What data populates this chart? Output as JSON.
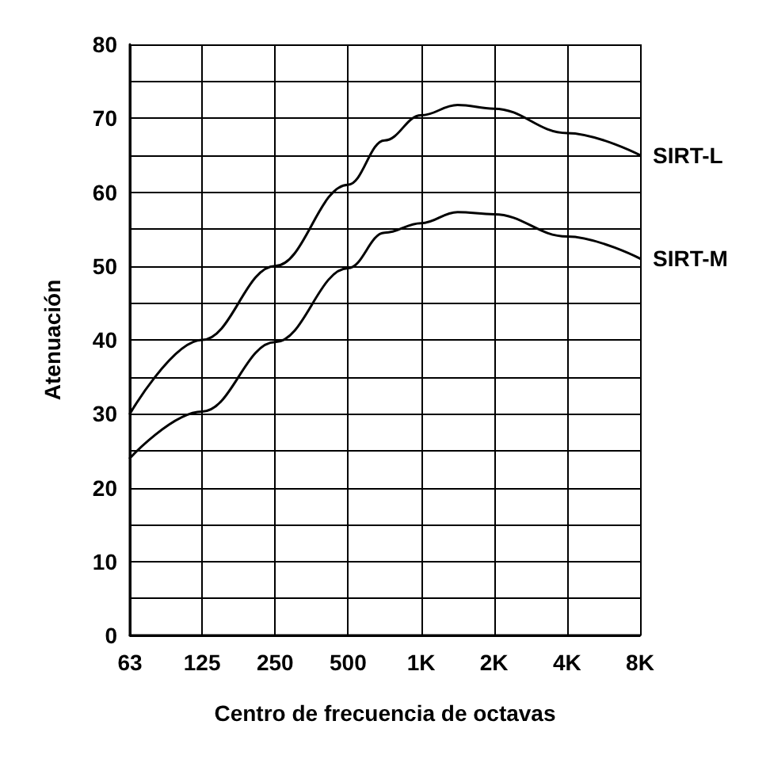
{
  "chart_data": {
    "type": "line",
    "xlabel": "Centro de frecuencia de octavas",
    "ylabel": "Atenuación",
    "log": "x",
    "xlim": [
      63,
      8000
    ],
    "xticks": [
      {
        "value": 63,
        "label": "63"
      },
      {
        "value": 125,
        "label": "125"
      },
      {
        "value": 250,
        "label": "250"
      },
      {
        "value": 500,
        "label": "500"
      },
      {
        "value": 1000,
        "label": "1K"
      },
      {
        "value": 2000,
        "label": "2K"
      },
      {
        "value": 4000,
        "label": "4K"
      },
      {
        "value": 8000,
        "label": "8K"
      }
    ],
    "ylim": [
      0,
      80
    ],
    "yticks": [
      0,
      {
        "value": 5,
        "label": null
      },
      10,
      {
        "value": 15,
        "label": null
      },
      20,
      {
        "value": 25,
        "label": null
      },
      30,
      {
        "value": 35,
        "label": null
      },
      40,
      {
        "value": 45,
        "label": null
      },
      50,
      {
        "value": 55,
        "label": null
      },
      60,
      {
        "value": 65,
        "label": null
      },
      70,
      {
        "value": 75,
        "label": null
      },
      80
    ],
    "grid": true,
    "legend": false,
    "marker": "none",
    "line_style": "solid",
    "series": [
      {
        "name": "SIRT-L",
        "color": "#000000",
        "x": [
          63,
          125,
          250,
          500,
          707,
          1000,
          1414,
          2000,
          4000,
          8000
        ],
        "values": [
          30,
          40,
          50,
          61,
          67,
          70.4,
          71.8,
          71.3,
          68,
          65
        ]
      },
      {
        "name": "SIRT-M",
        "color": "#000000",
        "x": [
          63,
          125,
          250,
          500,
          707,
          1000,
          1414,
          2000,
          4000,
          8000
        ],
        "values": [
          24,
          30.3,
          39.7,
          49.7,
          54.5,
          55.8,
          57.3,
          57,
          54,
          51
        ]
      }
    ]
  }
}
